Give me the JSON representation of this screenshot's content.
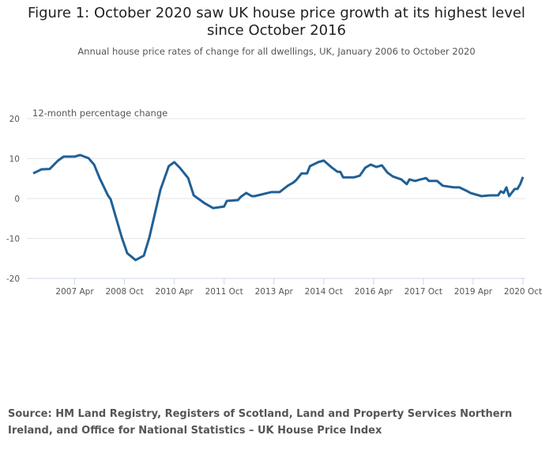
{
  "title": "Figure 1: October 2020 saw UK house price growth at its highest level since October 2016",
  "subtitle": "Annual house price rates of change for all dwellings, UK, January 2006 to October 2020",
  "source": "Source: HM Land Registry, Registers of Scotland, Land and Property Services Northern Ireland, and Office for National Statistics – UK House Price Index",
  "chart_data": {
    "type": "line",
    "title": "Figure 1: October 2020 saw UK house price growth at its highest level since October 2016",
    "ylabel": "12-month percentage change",
    "xlabel": "",
    "ylim": [
      -20,
      20
    ],
    "xlim": [
      "2006-01",
      "2020-10"
    ],
    "yticks": [
      20,
      10,
      0,
      -10,
      -20
    ],
    "xticks": [
      {
        "date": "2007-04",
        "label": "2007 Apr"
      },
      {
        "date": "2008-10",
        "label": "2008 Oct"
      },
      {
        "date": "2010-04",
        "label": "2010 Apr"
      },
      {
        "date": "2011-10",
        "label": "2011 Oct"
      },
      {
        "date": "2013-04",
        "label": "2013 Apr"
      },
      {
        "date": "2014-10",
        "label": "2014 Oct"
      },
      {
        "date": "2016-04",
        "label": "2016 Apr"
      },
      {
        "date": "2017-10",
        "label": "2017 Oct"
      },
      {
        "date": "2019-04",
        "label": "2019 Apr"
      },
      {
        "date": "2020-10",
        "label": "2020 Oct"
      }
    ],
    "grid": true,
    "color": "#206095",
    "series": [
      {
        "points": [
          [
            "2006-01",
            6.3
          ],
          [
            "2006-04",
            7.3
          ],
          [
            "2006-07",
            7.4
          ],
          [
            "2006-10",
            9.5
          ],
          [
            "2006-12",
            10.5
          ],
          [
            "2007-04",
            10.5
          ],
          [
            "2007-06",
            10.9
          ],
          [
            "2007-09",
            10.1
          ],
          [
            "2007-11",
            8.5
          ],
          [
            "2008-01",
            5.1
          ],
          [
            "2008-04",
            0.8
          ],
          [
            "2008-05",
            -0.2
          ],
          [
            "2008-09",
            -9.7
          ],
          [
            "2008-11",
            -13.7
          ],
          [
            "2009-02",
            -15.4
          ],
          [
            "2009-05",
            -14.3
          ],
          [
            "2009-07",
            -9.7
          ],
          [
            "2009-11",
            2.2
          ],
          [
            "2010-02",
            8.1
          ],
          [
            "2010-04",
            9.1
          ],
          [
            "2010-06",
            7.7
          ],
          [
            "2010-09",
            5.1
          ],
          [
            "2010-11",
            0.8
          ],
          [
            "2011-03",
            -1.2
          ],
          [
            "2011-06",
            -2.4
          ],
          [
            "2011-10",
            -2.0
          ],
          [
            "2011-11",
            -0.6
          ],
          [
            "2012-03",
            -0.4
          ],
          [
            "2012-04",
            0.4
          ],
          [
            "2012-06",
            1.4
          ],
          [
            "2012-08",
            0.6
          ],
          [
            "2012-09",
            0.6
          ],
          [
            "2013-03",
            1.6
          ],
          [
            "2013-06",
            1.6
          ],
          [
            "2013-09",
            3.2
          ],
          [
            "2013-11",
            4.0
          ],
          [
            "2013-12",
            4.6
          ],
          [
            "2014-02",
            6.3
          ],
          [
            "2014-04",
            6.3
          ],
          [
            "2014-05",
            8.1
          ],
          [
            "2014-08",
            9.1
          ],
          [
            "2014-10",
            9.5
          ],
          [
            "2015-01",
            7.7
          ],
          [
            "2015-03",
            6.7
          ],
          [
            "2015-04",
            6.7
          ],
          [
            "2015-05",
            5.3
          ],
          [
            "2015-07",
            5.3
          ],
          [
            "2015-09",
            5.3
          ],
          [
            "2015-11",
            5.7
          ],
          [
            "2015-12",
            6.7
          ],
          [
            "2016-01",
            7.7
          ],
          [
            "2016-03",
            8.5
          ],
          [
            "2016-05",
            7.9
          ],
          [
            "2016-07",
            8.3
          ],
          [
            "2016-09",
            6.5
          ],
          [
            "2016-11",
            5.5
          ],
          [
            "2017-02",
            4.8
          ],
          [
            "2017-04",
            3.6
          ],
          [
            "2017-05",
            4.8
          ],
          [
            "2017-07",
            4.4
          ],
          [
            "2017-09",
            4.8
          ],
          [
            "2017-11",
            5.1
          ],
          [
            "2017-12",
            4.4
          ],
          [
            "2018-03",
            4.4
          ],
          [
            "2018-05",
            3.2
          ],
          [
            "2018-09",
            2.8
          ],
          [
            "2018-11",
            2.8
          ],
          [
            "2019-02",
            1.8
          ],
          [
            "2019-03",
            1.4
          ],
          [
            "2019-07",
            0.6
          ],
          [
            "2019-10",
            0.8
          ],
          [
            "2020-01",
            0.8
          ],
          [
            "2020-02",
            1.8
          ],
          [
            "2020-03",
            1.4
          ],
          [
            "2020-04",
            2.8
          ],
          [
            "2020-05",
            0.6
          ],
          [
            "2020-07",
            2.4
          ],
          [
            "2020-08",
            2.4
          ],
          [
            "2020-09",
            3.6
          ],
          [
            "2020-10",
            5.4
          ]
        ]
      }
    ]
  }
}
